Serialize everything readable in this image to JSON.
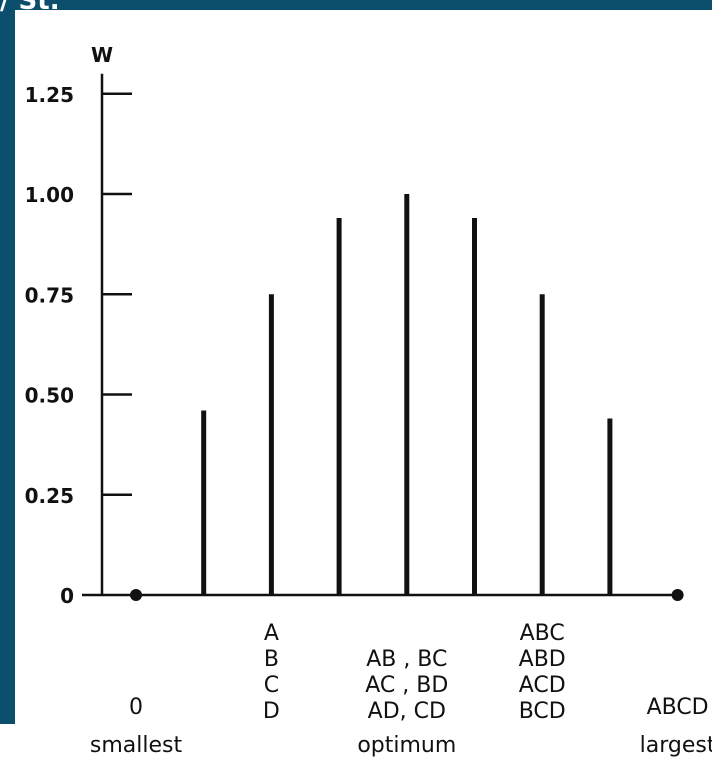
{
  "header_fragment": "/ St.",
  "chart_data": {
    "type": "bar",
    "ylabel": "W",
    "ylim": [
      0,
      1.25
    ],
    "yticks": [
      "1.25",
      "1.00",
      "0.75",
      "0.50",
      "0.25",
      "0"
    ],
    "ytick_values": [
      1.25,
      1.0,
      0.75,
      0.5,
      0.25,
      0
    ],
    "positions": [
      0,
      1,
      2,
      3,
      4,
      5,
      6,
      7,
      8
    ],
    "values": [
      0,
      0.46,
      0.75,
      0.94,
      1.0,
      0.94,
      0.75,
      0.44,
      0
    ],
    "endpoint_markers": [
      0,
      8
    ],
    "category_groups": [
      {
        "position": 2,
        "lines": [
          "A",
          "B",
          "C",
          "D"
        ]
      },
      {
        "position": 4,
        "lines": [
          "AB , BC",
          "AC , BD",
          "AD, CD"
        ]
      },
      {
        "position": 6,
        "lines": [
          "ABC",
          "ABD",
          "ACD",
          "BCD"
        ]
      }
    ],
    "bottom_labels": [
      {
        "position": 0,
        "lines": [
          "0",
          "smallest"
        ]
      },
      {
        "position": 4,
        "lines": [
          "",
          "optimum"
        ]
      },
      {
        "position": 8,
        "lines": [
          "ABCD",
          "largest"
        ]
      }
    ]
  }
}
